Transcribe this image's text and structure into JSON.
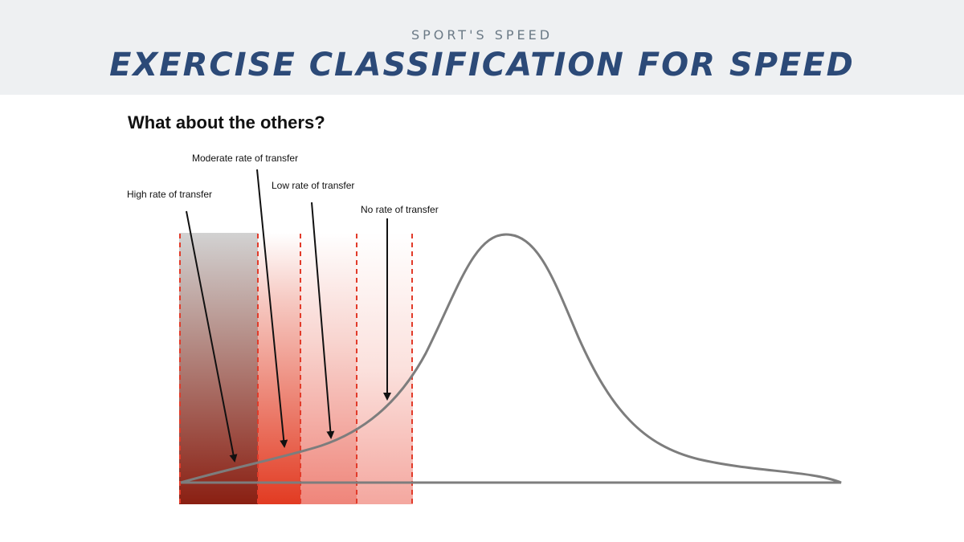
{
  "header": {
    "eyebrow": "SPORT'S SPEED",
    "title": "EXERCISE CLASSIFICATION FOR SPEED"
  },
  "subtitle": "What about the others?",
  "zones": [
    {
      "label": "High rate of transfer",
      "color": "#8a1f12"
    },
    {
      "label": "Moderate rate of transfer",
      "color": "#e23b22"
    },
    {
      "label": "Low rate of transfer",
      "color": "#ef857a"
    },
    {
      "label": "No rate of transfer",
      "color": "#f4a79f"
    }
  ],
  "colors": {
    "divider": "#e23b2a",
    "curve": "#7d7d7d",
    "arrow": "#111111"
  }
}
